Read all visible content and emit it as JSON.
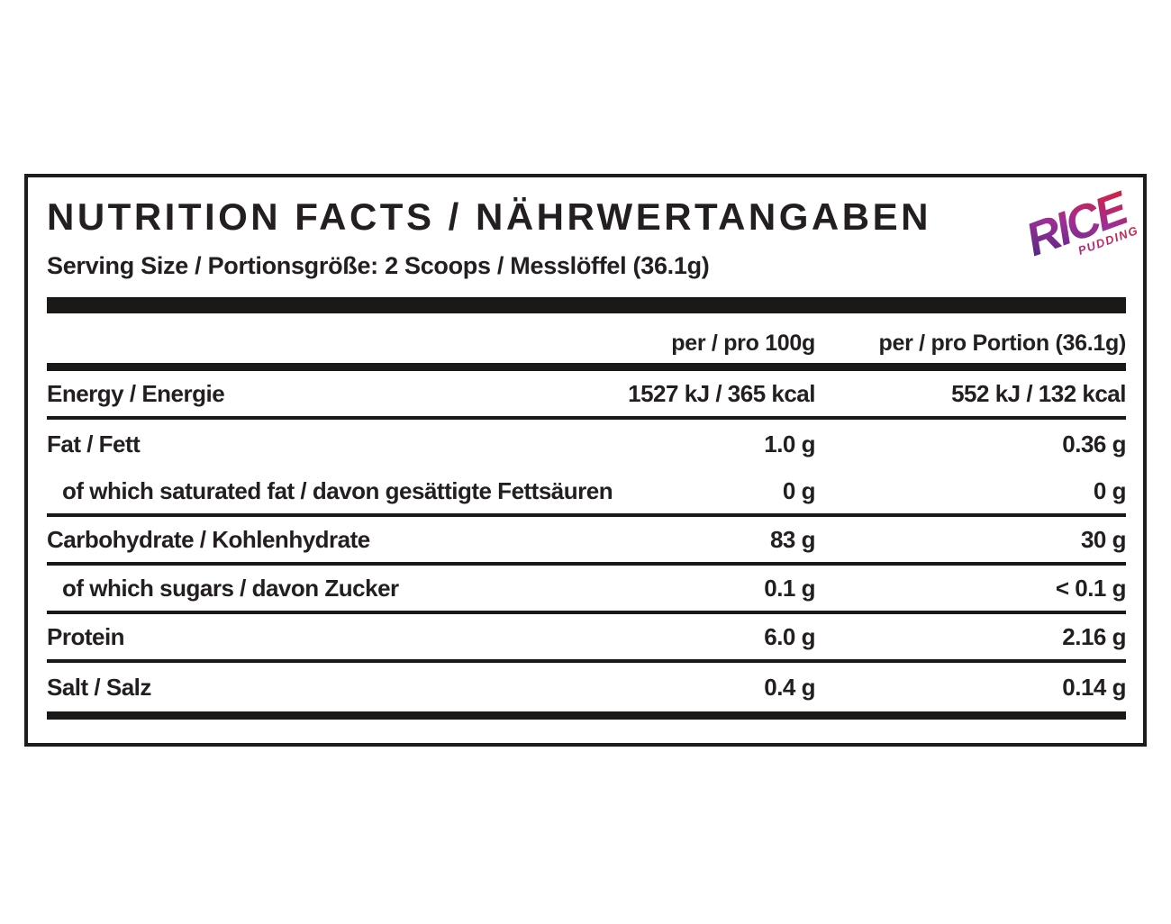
{
  "label": {
    "title": "NUTRITION FACTS / NÄHRWERTANGABEN",
    "serving_line": "Serving Size / Portionsgröße: 2 Scoops / Messlöffel (36.1g)",
    "logo": {
      "line1": "RICE",
      "line2": "PUDDING",
      "gradient": [
        "#44267f",
        "#9c2f96",
        "#e01f2d"
      ]
    },
    "columns": {
      "per100": "per / pro 100g",
      "portion": "per / pro Portion (36.1g)"
    },
    "rows": [
      {
        "name": "Energy / Energie",
        "per100": "1527 kJ / 365 kcal",
        "portion": "552 kJ / 132 kcal",
        "indent": false,
        "divider_after": true
      },
      {
        "name": "Fat / Fett",
        "per100": "1.0 g",
        "portion": "0.36 g",
        "indent": false,
        "divider_after": false
      },
      {
        "name": "of which saturated fat / davon gesättigte Fettsäuren",
        "per100": "0 g",
        "portion": "0 g",
        "indent": true,
        "divider_after": true
      },
      {
        "name": "Carbohydrate / Kohlenhydrate",
        "per100": "83 g",
        "portion": "30 g",
        "indent": false,
        "divider_after": true
      },
      {
        "name": "of which sugars / davon Zucker",
        "per100": "0.1 g",
        "portion": "< 0.1 g",
        "indent": true,
        "divider_after": true
      },
      {
        "name": "Protein",
        "per100": "6.0 g",
        "portion": "2.16 g",
        "indent": false,
        "divider_after": true
      },
      {
        "name": "Salt / Salz",
        "per100": "0.4 g",
        "portion": "0.14 g",
        "indent": false,
        "divider_after": false
      }
    ]
  }
}
